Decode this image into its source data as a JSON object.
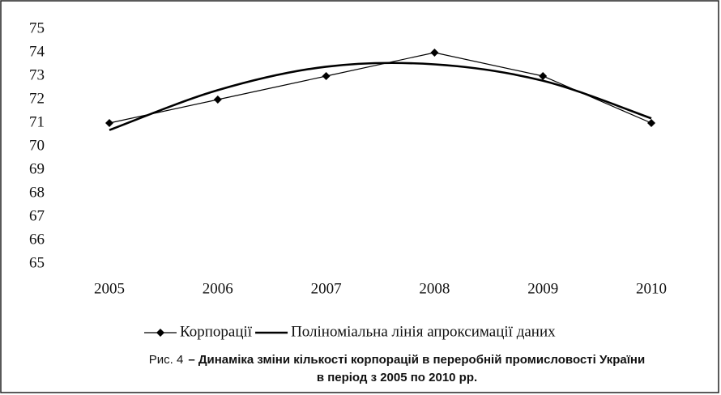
{
  "chart_data": {
    "type": "line",
    "categories": [
      "2005",
      "2006",
      "2007",
      "2008",
      "2009",
      "2010"
    ],
    "series": [
      {
        "name": "Корпорації",
        "color": "#000000",
        "marker": "diamond",
        "values": [
          71,
          72,
          73,
          74,
          73,
          71
        ]
      },
      {
        "name": "Поліноміальна лінія апроксимації даних",
        "color": "#000000",
        "smooth": true,
        "values": [
          70.7,
          72.4,
          73.4,
          73.5,
          72.8,
          71.2
        ]
      }
    ],
    "ylim": [
      65,
      75
    ],
    "yticks": [
      65,
      66,
      67,
      68,
      69,
      70,
      71,
      72,
      73,
      74,
      75
    ],
    "grid": false,
    "legend": "bottom",
    "figure_label": "Рис. 4",
    "title": [
      "– Динаміка зміни кількості корпорацій в переробній промисловості України",
      "в період з 2005 по 2010 рр."
    ]
  }
}
